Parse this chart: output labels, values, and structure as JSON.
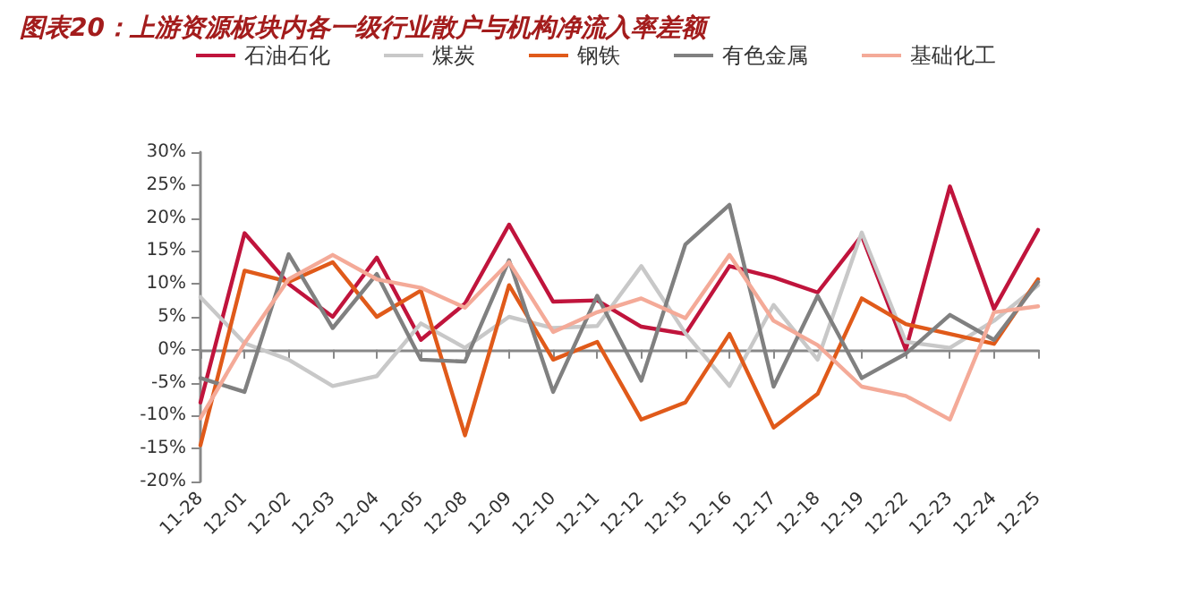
{
  "chart_data": {
    "type": "line",
    "title": "图表20：上游资源板块内各一级行业散户与机构净流入率差额",
    "categories": [
      "11-28",
      "12-01",
      "12-02",
      "12-03",
      "12-04",
      "12-05",
      "12-08",
      "12-09",
      "12-10",
      "12-11",
      "12-12",
      "12-15",
      "12-16",
      "12-17",
      "12-18",
      "12-19",
      "12-22",
      "12-23",
      "12-24",
      "12-25"
    ],
    "series": [
      {
        "name": "石油石化",
        "color": "#c0143c",
        "values": [
          -8,
          17.7,
          10,
          5,
          14,
          1.5,
          7,
          19,
          7.3,
          7.5,
          3.5,
          2.4,
          12.7,
          11,
          8.7,
          17.3,
          0,
          24.8,
          6.2,
          18.2
        ]
      },
      {
        "name": "煤炭",
        "color": "#c8c8c8",
        "values": [
          8,
          1,
          -1.5,
          -5.5,
          -4,
          4,
          0.3,
          5,
          3.3,
          3.6,
          12.7,
          2.5,
          -5.5,
          6.8,
          -1.5,
          17.8,
          1.2,
          0.3,
          4.4,
          9.8
        ]
      },
      {
        "name": "钢铁",
        "color": "#e05a1a",
        "values": [
          -14.5,
          12,
          10.3,
          13.3,
          5,
          9,
          -13,
          9.8,
          -1.5,
          1.2,
          -10.6,
          -8,
          2.4,
          -11.8,
          -6.7,
          7.8,
          3.9,
          2.4,
          0.9,
          10.7
        ]
      },
      {
        "name": "有色金属",
        "color": "#808080",
        "values": [
          -4.3,
          -6.4,
          14.5,
          3.3,
          11.5,
          -1.5,
          -1.8,
          13.6,
          -6.4,
          8.2,
          -4.7,
          16,
          22,
          -5.6,
          8.2,
          -4.3,
          -0.6,
          5.3,
          1.5,
          10.3
        ]
      },
      {
        "name": "基础化工",
        "color": "#f4aa98",
        "values": [
          -10.4,
          1,
          10.7,
          14.4,
          10.7,
          9.4,
          6.4,
          13.3,
          2.7,
          5.7,
          7.8,
          4.8,
          14.4,
          4.4,
          0.7,
          -5.6,
          -7,
          -10.6,
          5.7,
          6.6
        ]
      }
    ],
    "ylim": [
      -20,
      30
    ],
    "yticks": [
      {
        "value": -20,
        "label": "-20%"
      },
      {
        "value": -15,
        "label": "-15%"
      },
      {
        "value": -10,
        "label": "-10%"
      },
      {
        "value": -5,
        "label": "-5%"
      },
      {
        "value": 0,
        "label": "0%"
      },
      {
        "value": 5,
        "label": "5%"
      },
      {
        "value": 10,
        "label": "10%"
      },
      {
        "value": 15,
        "label": "15%"
      },
      {
        "value": 20,
        "label": "20%"
      },
      {
        "value": 25,
        "label": "25%"
      },
      {
        "value": 30,
        "label": "30%"
      }
    ],
    "legend": "top",
    "marker": "none",
    "line_style": "solid"
  }
}
